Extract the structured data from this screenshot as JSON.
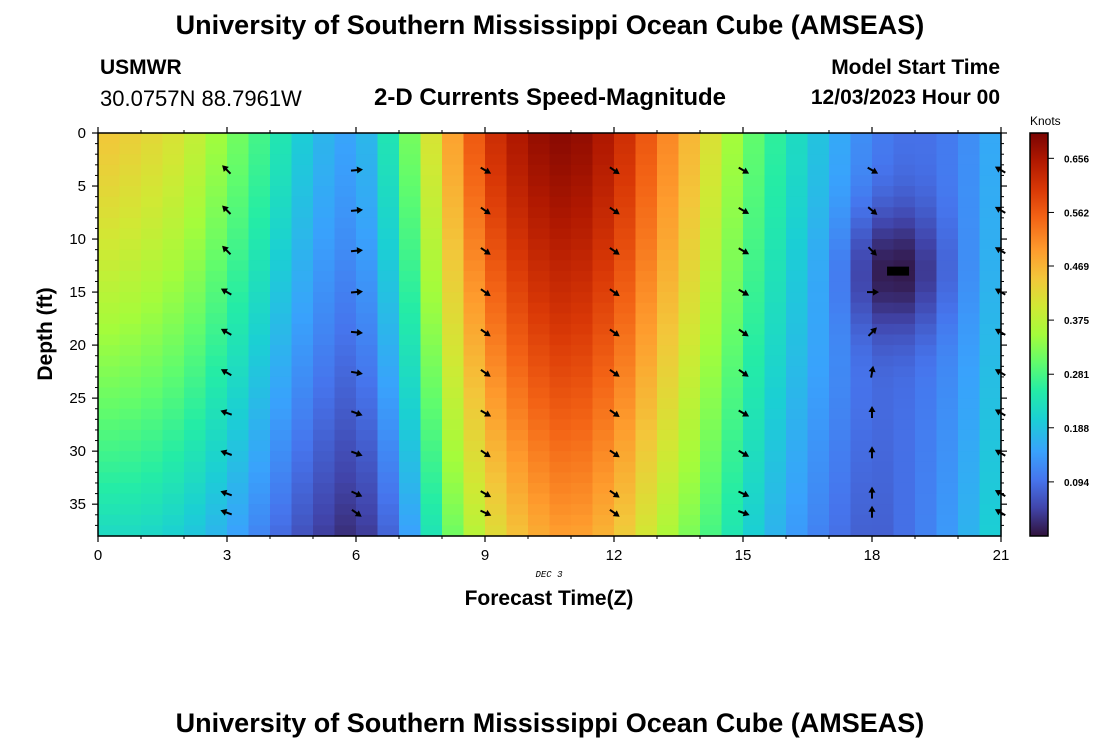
{
  "header": {
    "title": "University of Southern Mississippi Ocean Cube (AMSEAS)",
    "station_id": "USMWR",
    "coordinates": "30.0757N  88.7961W",
    "plot_title": "2-D Currents Speed-Magnitude",
    "model_start_label": "Model Start Time",
    "model_start_value": "12/03/2023 Hour 00"
  },
  "footer": {
    "title": "University of Southern Mississippi Ocean Cube (AMSEAS)"
  },
  "chart_data": {
    "type": "heatmap",
    "title": "2-D Currents Speed-Magnitude",
    "xlabel": "Forecast Time(Z)",
    "ylabel": "Depth (ft)",
    "x_annotation": "DEC 3",
    "xlim": [
      0,
      21
    ],
    "ylim": [
      38,
      0
    ],
    "x_ticks": [
      0,
      3,
      6,
      9,
      12,
      15,
      18,
      21
    ],
    "y_ticks": [
      0,
      5,
      10,
      15,
      20,
      25,
      30,
      35
    ],
    "colorbar": {
      "label": "Knots",
      "min": 0.0,
      "max": 0.7,
      "ticks": [
        0.094,
        0.188,
        0.281,
        0.375,
        0.469,
        0.562,
        0.656
      ]
    },
    "speed_knots": {
      "time_hours": [
        0,
        1,
        2,
        3,
        4,
        5,
        6,
        7,
        8,
        9,
        10,
        11,
        12,
        13,
        14,
        15,
        16,
        17,
        18,
        19,
        20,
        21
      ],
      "near_surface": [
        0.45,
        0.43,
        0.4,
        0.33,
        0.26,
        0.18,
        0.14,
        0.27,
        0.45,
        0.6,
        0.67,
        0.69,
        0.64,
        0.54,
        0.44,
        0.32,
        0.24,
        0.17,
        0.11,
        0.09,
        0.11,
        0.17
      ],
      "near_bottom": [
        0.22,
        0.22,
        0.2,
        0.16,
        0.1,
        0.05,
        0.02,
        0.1,
        0.28,
        0.4,
        0.47,
        0.5,
        0.46,
        0.38,
        0.3,
        0.22,
        0.15,
        0.1,
        0.07,
        0.1,
        0.15,
        0.22
      ]
    },
    "vector_times_hours": [
      3,
      6,
      9,
      12,
      15,
      18,
      21
    ],
    "vector_depths_ft": [
      3.5,
      7.3,
      11.1,
      15,
      18.8,
      22.6,
      26.4,
      30.2,
      34,
      35.8
    ],
    "vector_directions_deg": {
      "3": [
        315,
        315,
        315,
        300,
        300,
        300,
        290,
        290,
        290,
        290
      ],
      "6": [
        85,
        85,
        85,
        85,
        95,
        100,
        110,
        110,
        115,
        125
      ],
      "9": [
        120,
        125,
        125,
        125,
        125,
        125,
        120,
        125,
        120,
        115
      ],
      "12": [
        125,
        125,
        125,
        125,
        125,
        125,
        125,
        125,
        125,
        125
      ],
      "15": [
        120,
        120,
        120,
        120,
        125,
        125,
        120,
        120,
        115,
        110
      ],
      "18": [
        120,
        130,
        135,
        90,
        45,
        10,
        0,
        0,
        0,
        0
      ],
      "21": [
        300,
        300,
        300,
        300,
        300,
        300,
        300,
        300,
        300,
        300
      ]
    }
  }
}
